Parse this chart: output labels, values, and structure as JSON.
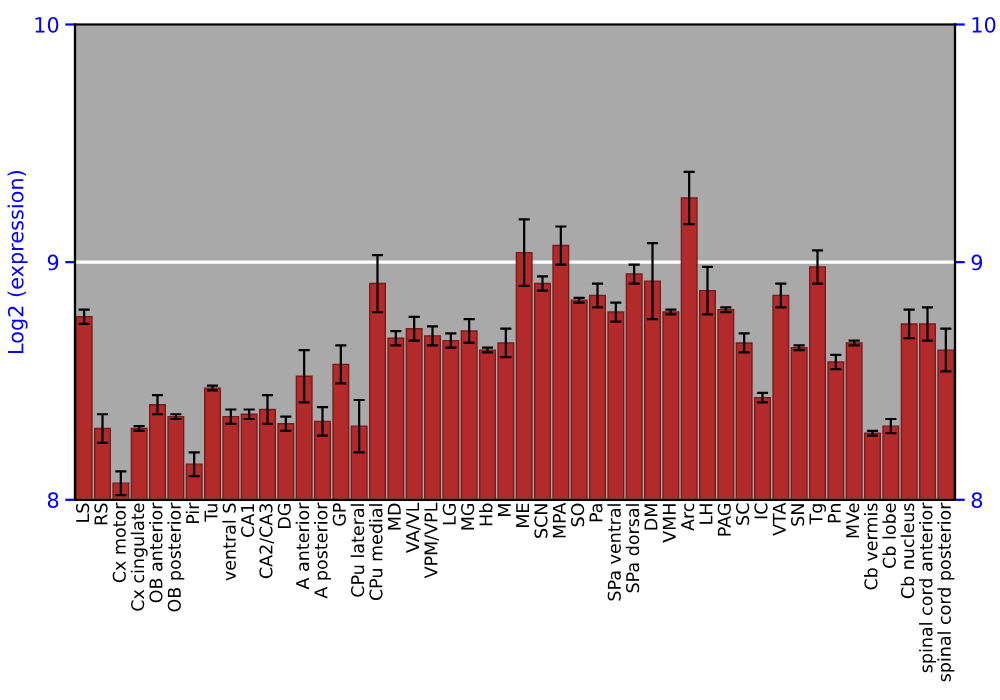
{
  "chart_data": {
    "type": "bar",
    "ylabel": "Log2 (expression)",
    "categories": [
      "LS",
      "RS",
      "Cx motor",
      "Cx cingulate",
      "OB anterior",
      "OB posterior",
      "Pir",
      "Tu",
      "ventral S",
      "CA1",
      "CA2/CA3",
      "DG",
      "A anterior",
      "A posterior",
      "GP",
      "CPu lateral",
      "CPu medial",
      "MD",
      "VA/VL",
      "VPM/VPL",
      "LG",
      "MG",
      "Hb",
      "M",
      "ME",
      "SCN",
      "MPA",
      "SO",
      "Pa",
      "SPa ventral",
      "SPa dorsal",
      "DM",
      "VMH",
      "Arc",
      "LH",
      "PAG",
      "SC",
      "IC",
      "VTA",
      "SN",
      "Tg",
      "Pn",
      "MVe",
      "Cb vermis",
      "Cb lobe",
      "Cb nucleus",
      "spinal cord anterior",
      "spinal cord posterior"
    ],
    "values": [
      8.77,
      8.3,
      8.07,
      8.3,
      8.4,
      8.35,
      8.15,
      8.47,
      8.35,
      8.36,
      8.38,
      8.32,
      8.52,
      8.33,
      8.57,
      8.31,
      8.91,
      8.68,
      8.72,
      8.69,
      8.67,
      8.71,
      8.63,
      8.66,
      9.04,
      8.91,
      9.07,
      8.84,
      8.86,
      8.79,
      8.95,
      8.92,
      8.79,
      9.27,
      8.88,
      8.8,
      8.66,
      8.43,
      8.86,
      8.64,
      8.98,
      8.58,
      8.66,
      8.28,
      8.31,
      8.74,
      8.74,
      8.63
    ],
    "errors": [
      0.03,
      0.06,
      0.05,
      0.01,
      0.04,
      0.01,
      0.05,
      0.01,
      0.03,
      0.02,
      0.06,
      0.03,
      0.11,
      0.06,
      0.08,
      0.11,
      0.12,
      0.03,
      0.05,
      0.04,
      0.03,
      0.05,
      0.01,
      0.06,
      0.14,
      0.03,
      0.08,
      0.01,
      0.05,
      0.04,
      0.04,
      0.16,
      0.01,
      0.11,
      0.1,
      0.01,
      0.04,
      0.02,
      0.05,
      0.01,
      0.07,
      0.03,
      0.01,
      0.01,
      0.03,
      0.06,
      0.07,
      0.09
    ],
    "color": "#b22a2a",
    "ylim": [
      8,
      10
    ],
    "yticks": [
      8,
      9,
      10
    ],
    "y2lim": [
      8,
      10
    ],
    "y2ticks": [
      8,
      9,
      10
    ],
    "ref_lines": [
      {
        "axis": "y",
        "value": 9,
        "color": "#ffffff"
      }
    ]
  }
}
